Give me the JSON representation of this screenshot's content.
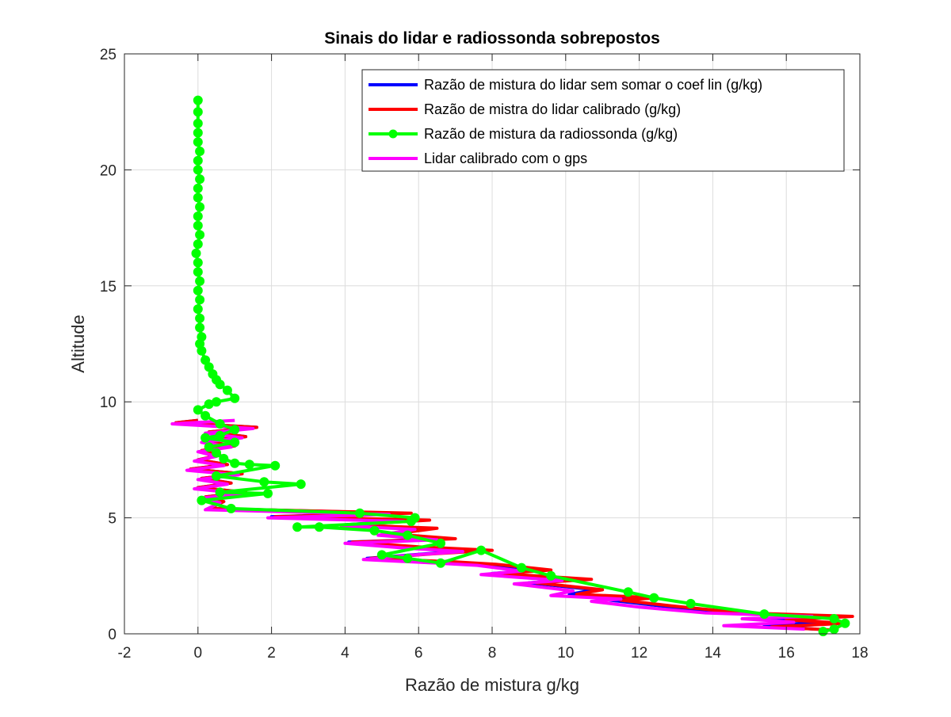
{
  "chart_data": {
    "type": "line",
    "title": "Sinais do lidar e radiossonda sobrepostos",
    "xlabel": "Razão de mistura g/kg",
    "ylabel": "Altitude",
    "xlim": [
      -2,
      18
    ],
    "ylim": [
      0,
      25
    ],
    "xticks": [
      -2,
      0,
      2,
      4,
      6,
      8,
      10,
      12,
      14,
      16,
      18
    ],
    "yticks": [
      0,
      5,
      10,
      15,
      20,
      25
    ],
    "grid": true,
    "legend_position": "top-right",
    "series": [
      {
        "name": "Razão de mistura do lidar sem somar o coef lin (g/kg)",
        "color": "#0000ff",
        "marker": "none",
        "points": [
          [
            16.8,
            0.2
          ],
          [
            15.4,
            0.35
          ],
          [
            16.9,
            0.5
          ],
          [
            15.6,
            0.65
          ],
          [
            17.3,
            0.75
          ],
          [
            14.5,
            0.9
          ],
          [
            12.6,
            1.2
          ],
          [
            11.2,
            1.45
          ],
          [
            12.2,
            1.55
          ],
          [
            10.1,
            1.7
          ],
          [
            10.8,
            1.9
          ],
          [
            9.0,
            2.2
          ],
          [
            10.4,
            2.35
          ],
          [
            8.0,
            2.6
          ],
          [
            9.3,
            2.75
          ],
          [
            7.9,
            3.0
          ],
          [
            6.8,
            3.1
          ],
          [
            4.6,
            3.25
          ],
          [
            6.2,
            3.45
          ],
          [
            7.4,
            3.6
          ],
          [
            5.8,
            3.75
          ],
          [
            4.1,
            3.95
          ],
          [
            6.8,
            4.1
          ],
          [
            5.1,
            4.3
          ],
          [
            6.2,
            4.55
          ],
          [
            4.0,
            4.7
          ],
          [
            5.9,
            4.9
          ],
          [
            2.0,
            5.05
          ],
          [
            5.5,
            5.2
          ],
          [
            0.3,
            5.4
          ],
          [
            0.7,
            5.7
          ],
          [
            0.2,
            5.9
          ],
          [
            1.3,
            6.1
          ],
          [
            0.0,
            6.3
          ],
          [
            0.9,
            6.5
          ],
          [
            0.1,
            6.7
          ],
          [
            1.2,
            6.9
          ],
          [
            -0.2,
            7.1
          ],
          [
            0.8,
            7.3
          ],
          [
            0.0,
            7.5
          ],
          [
            0.6,
            7.7
          ],
          [
            0.1,
            7.9
          ],
          [
            1.0,
            8.1
          ],
          [
            0.2,
            8.3
          ],
          [
            1.3,
            8.5
          ],
          [
            0.3,
            8.7
          ],
          [
            1.6,
            8.9
          ],
          [
            -0.6,
            9.1
          ],
          [
            0.0,
            9.2
          ]
        ]
      },
      {
        "name": "Razão de mistra do lidar calibrado (g/kg)",
        "color": "#ff0000",
        "marker": "none",
        "points": [
          [
            17.4,
            0.15
          ],
          [
            15.6,
            0.3
          ],
          [
            17.6,
            0.45
          ],
          [
            16.0,
            0.6
          ],
          [
            17.8,
            0.75
          ],
          [
            14.8,
            0.9
          ],
          [
            12.9,
            1.2
          ],
          [
            11.5,
            1.45
          ],
          [
            12.5,
            1.55
          ],
          [
            10.3,
            1.7
          ],
          [
            11.0,
            1.9
          ],
          [
            9.2,
            2.2
          ],
          [
            10.7,
            2.35
          ],
          [
            8.2,
            2.6
          ],
          [
            9.6,
            2.75
          ],
          [
            8.1,
            3.0
          ],
          [
            7.0,
            3.1
          ],
          [
            4.7,
            3.25
          ],
          [
            6.4,
            3.45
          ],
          [
            8.0,
            3.6
          ],
          [
            6.0,
            3.75
          ],
          [
            4.2,
            3.95
          ],
          [
            7.0,
            4.1
          ],
          [
            5.3,
            4.3
          ],
          [
            6.5,
            4.55
          ],
          [
            4.1,
            4.7
          ],
          [
            6.3,
            4.9
          ],
          [
            2.1,
            5.05
          ],
          [
            5.8,
            5.2
          ],
          [
            0.3,
            5.4
          ],
          [
            0.7,
            5.7
          ],
          [
            0.2,
            5.9
          ],
          [
            1.3,
            6.1
          ],
          [
            0.0,
            6.3
          ],
          [
            0.9,
            6.5
          ],
          [
            0.1,
            6.7
          ],
          [
            1.2,
            6.9
          ],
          [
            -0.2,
            7.1
          ],
          [
            0.8,
            7.3
          ],
          [
            0.0,
            7.5
          ],
          [
            0.6,
            7.7
          ],
          [
            0.1,
            7.9
          ],
          [
            1.0,
            8.1
          ],
          [
            0.2,
            8.3
          ],
          [
            1.3,
            8.5
          ],
          [
            0.3,
            8.7
          ],
          [
            1.6,
            8.9
          ],
          [
            -0.6,
            9.1
          ],
          [
            0.0,
            9.2
          ]
        ]
      },
      {
        "name": "Razão de mistura da radiossonda (g/kg)",
        "color": "#00ff00",
        "marker": "circle",
        "points": [
          [
            17.0,
            0.1
          ],
          [
            17.3,
            0.2
          ],
          [
            17.6,
            0.45
          ],
          [
            17.3,
            0.65
          ],
          [
            15.4,
            0.85
          ],
          [
            13.4,
            1.3
          ],
          [
            12.4,
            1.55
          ],
          [
            11.7,
            1.8
          ],
          [
            9.6,
            2.5
          ],
          [
            8.8,
            2.85
          ],
          [
            7.7,
            3.6
          ],
          [
            6.6,
            3.05
          ],
          [
            5.7,
            3.25
          ],
          [
            5.0,
            3.4
          ],
          [
            6.6,
            3.9
          ],
          [
            5.7,
            4.25
          ],
          [
            4.8,
            4.45
          ],
          [
            3.3,
            4.6
          ],
          [
            2.7,
            4.6
          ],
          [
            5.8,
            4.85
          ],
          [
            5.9,
            5.0
          ],
          [
            4.4,
            5.2
          ],
          [
            0.9,
            5.4
          ],
          [
            0.1,
            5.75
          ],
          [
            1.9,
            6.05
          ],
          [
            0.6,
            6.1
          ],
          [
            2.8,
            6.45
          ],
          [
            1.8,
            6.55
          ],
          [
            0.5,
            6.8
          ],
          [
            2.1,
            7.25
          ],
          [
            1.4,
            7.3
          ],
          [
            1.0,
            7.35
          ],
          [
            0.7,
            7.55
          ],
          [
            0.5,
            7.8
          ],
          [
            0.3,
            8.05
          ],
          [
            1.0,
            8.25
          ],
          [
            0.2,
            8.45
          ],
          [
            0.6,
            8.55
          ],
          [
            1.0,
            8.8
          ],
          [
            0.6,
            9.05
          ],
          [
            0.2,
            9.4
          ],
          [
            0.0,
            9.65
          ],
          [
            0.3,
            9.9
          ],
          [
            0.5,
            10.0
          ],
          [
            1.0,
            10.15
          ],
          [
            0.8,
            10.5
          ],
          [
            0.6,
            10.75
          ],
          [
            0.5,
            10.95
          ],
          [
            0.4,
            11.2
          ],
          [
            0.3,
            11.5
          ],
          [
            0.2,
            11.8
          ],
          [
            0.1,
            12.2
          ],
          [
            0.05,
            12.5
          ],
          [
            0.1,
            12.8
          ],
          [
            0.05,
            13.2
          ],
          [
            0.05,
            13.6
          ],
          [
            0.0,
            14.0
          ],
          [
            0.05,
            14.4
          ],
          [
            0.0,
            14.8
          ],
          [
            0.05,
            15.2
          ],
          [
            0.0,
            15.6
          ],
          [
            0.0,
            16.0
          ],
          [
            -0.05,
            16.4
          ],
          [
            0.0,
            16.8
          ],
          [
            0.05,
            17.2
          ],
          [
            0.0,
            17.6
          ],
          [
            0.0,
            18.0
          ],
          [
            0.05,
            18.4
          ],
          [
            0.0,
            18.8
          ],
          [
            0.0,
            19.2
          ],
          [
            0.05,
            19.6
          ],
          [
            0.0,
            20.0
          ],
          [
            0.0,
            20.4
          ],
          [
            0.05,
            20.8
          ],
          [
            0.0,
            21.2
          ],
          [
            0.0,
            21.6
          ],
          [
            0.0,
            22.0
          ],
          [
            0.0,
            22.5
          ],
          [
            0.0,
            23.0
          ]
        ]
      },
      {
        "name": "Lidar calibrado com o gps",
        "color": "#ff00ff",
        "marker": "none",
        "points": [
          [
            16.5,
            0.2
          ],
          [
            14.3,
            0.35
          ],
          [
            16.2,
            0.5
          ],
          [
            14.8,
            0.65
          ],
          [
            16.7,
            0.75
          ],
          [
            13.8,
            0.9
          ],
          [
            12.0,
            1.15
          ],
          [
            10.7,
            1.4
          ],
          [
            11.5,
            1.5
          ],
          [
            9.6,
            1.65
          ],
          [
            10.2,
            1.85
          ],
          [
            8.6,
            2.15
          ],
          [
            9.9,
            2.3
          ],
          [
            7.7,
            2.55
          ],
          [
            8.8,
            2.7
          ],
          [
            7.6,
            2.95
          ],
          [
            6.5,
            3.05
          ],
          [
            4.5,
            3.2
          ],
          [
            5.9,
            3.4
          ],
          [
            7.2,
            3.55
          ],
          [
            5.6,
            3.7
          ],
          [
            4.0,
            3.9
          ],
          [
            6.5,
            4.05
          ],
          [
            4.9,
            4.25
          ],
          [
            5.9,
            4.5
          ],
          [
            3.9,
            4.65
          ],
          [
            5.6,
            4.85
          ],
          [
            1.9,
            5.0
          ],
          [
            5.2,
            5.15
          ],
          [
            0.2,
            5.35
          ],
          [
            0.6,
            5.65
          ],
          [
            0.1,
            5.85
          ],
          [
            1.2,
            6.05
          ],
          [
            -0.1,
            6.25
          ],
          [
            0.8,
            6.45
          ],
          [
            0.0,
            6.65
          ],
          [
            1.1,
            6.85
          ],
          [
            -0.3,
            7.05
          ],
          [
            0.7,
            7.25
          ],
          [
            -0.1,
            7.45
          ],
          [
            0.5,
            7.65
          ],
          [
            0.0,
            7.85
          ],
          [
            0.9,
            8.05
          ],
          [
            0.1,
            8.25
          ],
          [
            1.2,
            8.45
          ],
          [
            0.2,
            8.65
          ],
          [
            1.5,
            8.85
          ],
          [
            -0.7,
            9.05
          ],
          [
            1.0,
            9.2
          ]
        ]
      }
    ]
  }
}
